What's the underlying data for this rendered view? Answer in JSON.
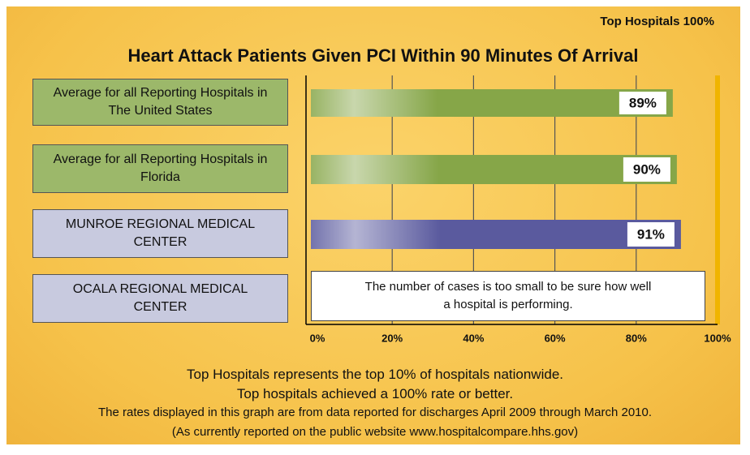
{
  "chart_data": {
    "type": "bar",
    "orientation": "horizontal",
    "title": "Heart Attack Patients Given PCI Within 90 Minutes Of Arrival",
    "categories": [
      "Average for all Reporting Hospitals in The United States",
      "Average for all Reporting Hospitals in Florida",
      "MUNROE REGIONAL MEDICAL CENTER",
      "OCALA REGIONAL MEDICAL CENTER"
    ],
    "category_colors": [
      "#9cb86a",
      "#9cb86a",
      "#c8cadf",
      "#c8cadf"
    ],
    "values": [
      89,
      90,
      91,
      null
    ],
    "value_labels": [
      "89%",
      "90%",
      "91%",
      null
    ],
    "colors": [
      "#86a648",
      "#86a648",
      "#5a5a9e",
      null
    ],
    "no_data_note": "The number of cases is too small to be sure how well a hospital is performing.",
    "xlim": [
      0,
      100
    ],
    "xticks": [
      {
        "value": 0,
        "label": "0%"
      },
      {
        "value": 20,
        "label": "20%"
      },
      {
        "value": 40,
        "label": "40%"
      },
      {
        "value": 60,
        "label": "60%"
      },
      {
        "value": 80,
        "label": "80%"
      },
      {
        "value": 100,
        "label": "100%"
      }
    ],
    "grid": true,
    "target": {
      "value": 100,
      "label": "Top Hospitals 100%",
      "color": "#f0b400"
    },
    "footer": [
      "Top Hospitals represents the top 10% of hospitals nationwide.",
      "Top hospitals achieved a 100% rate or better.",
      "The rates displayed in this graph are from data reported for discharges April 2009 through March 2010.",
      "(As currently reported on the public website www.hospitalcompare.hhs.gov)"
    ]
  }
}
